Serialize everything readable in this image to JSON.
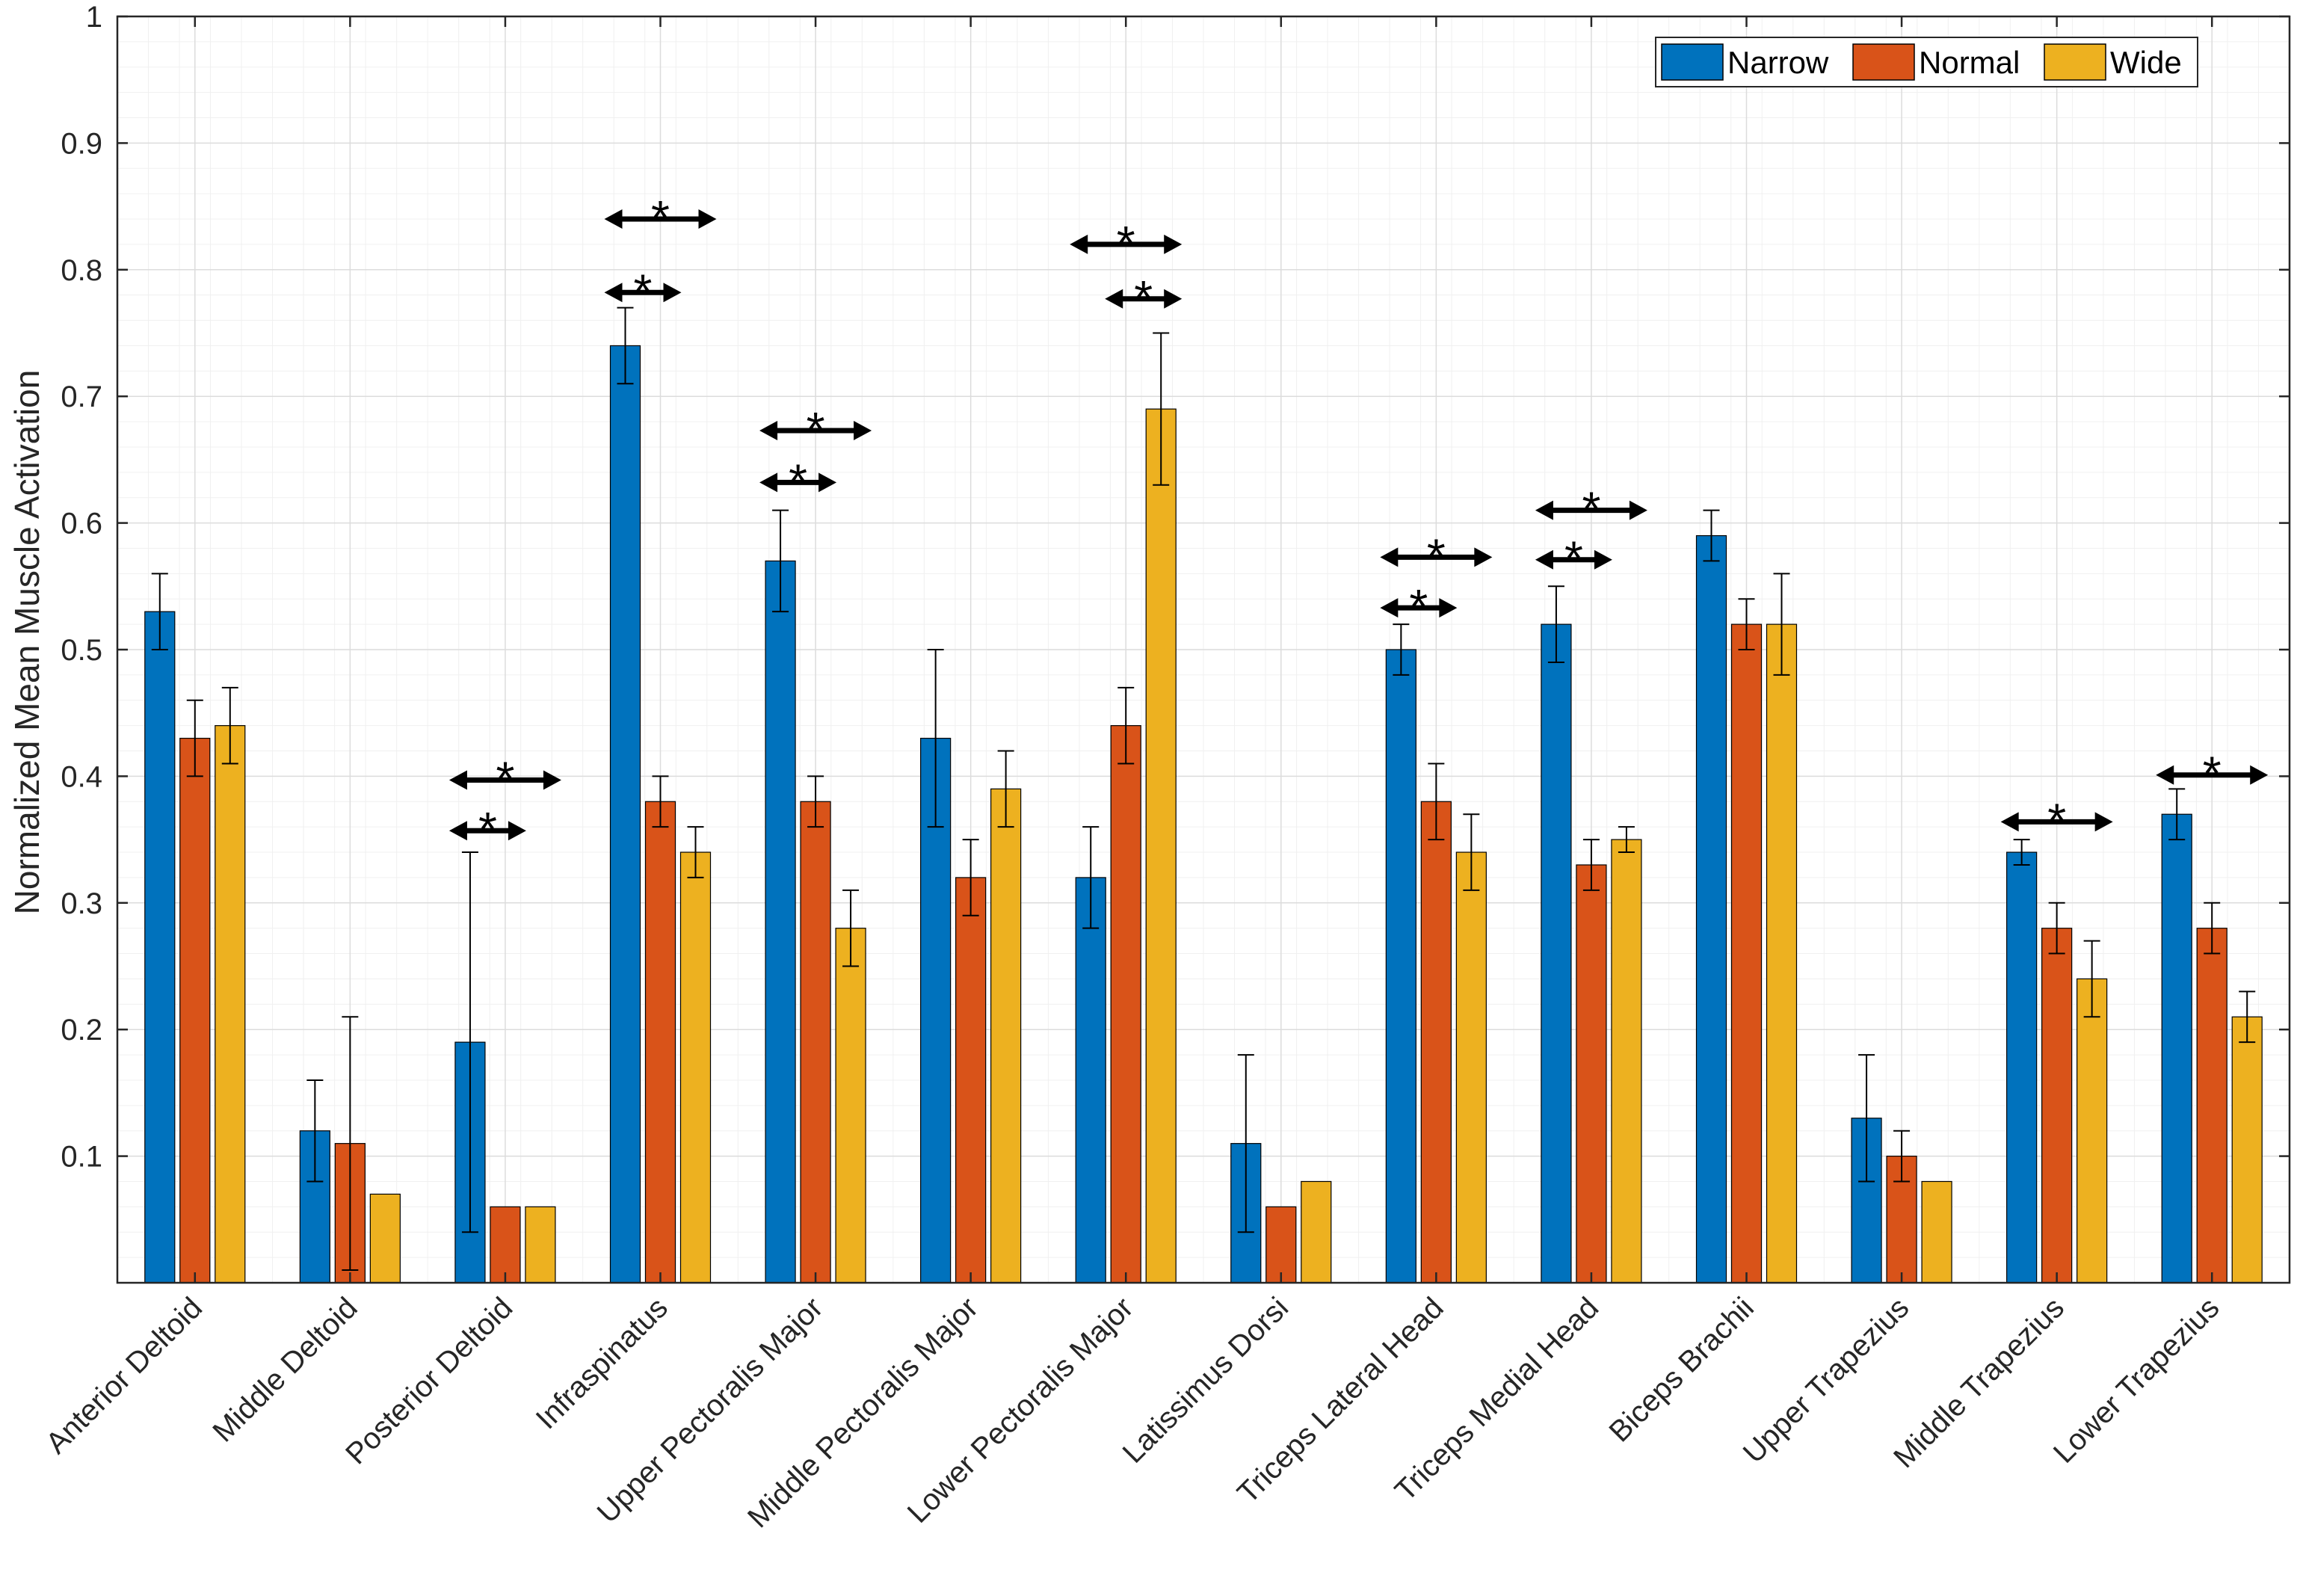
{
  "chart_data": {
    "type": "bar",
    "title": "",
    "xlabel": "",
    "ylabel": "Normalized Mean Muscle Activation",
    "ylim": [
      0,
      1
    ],
    "yticks": [
      0.1,
      0.2,
      0.3,
      0.4,
      0.5,
      0.6,
      0.7,
      0.8,
      0.9,
      1
    ],
    "ytick_labels": [
      "0.1",
      "0.2",
      "0.3",
      "0.4",
      "0.5",
      "0.6",
      "0.7",
      "0.8",
      "0.9",
      "1"
    ],
    "grid": true,
    "minor_grid": true,
    "legend_position": "top-right",
    "categories": [
      "Anterior Deltoid",
      "Middle Deltoid",
      "Posterior Deltoid",
      "Infraspinatus",
      "Upper Pectoralis Major",
      "Middle Pectoralis Major",
      "Lower Pectoralis Major",
      "Latissimus Dorsi",
      "Triceps Lateral Head",
      "Triceps Medial Head",
      "Biceps Brachii",
      "Upper Trapezius",
      "Middle Trapezius",
      "Lower Trapezius"
    ],
    "series": [
      {
        "name": "Narrow",
        "color": "#0072BD",
        "values": [
          0.53,
          0.12,
          0.19,
          0.74,
          0.57,
          0.43,
          0.32,
          0.11,
          0.5,
          0.52,
          0.59,
          0.13,
          0.34,
          0.37
        ],
        "error": [
          0.03,
          0.04,
          0.15,
          0.03,
          0.04,
          0.07,
          0.04,
          0.07,
          0.02,
          0.03,
          0.02,
          0.05,
          0.01,
          0.02
        ]
      },
      {
        "name": "Normal",
        "color": "#D95319",
        "values": [
          0.43,
          0.11,
          0.06,
          0.38,
          0.38,
          0.32,
          0.44,
          0.06,
          0.38,
          0.33,
          0.52,
          0.1,
          0.28,
          0.28
        ],
        "error": [
          0.03,
          0.1,
          0.0,
          0.02,
          0.02,
          0.03,
          0.03,
          0.0,
          0.03,
          0.02,
          0.02,
          0.02,
          0.02,
          0.02
        ]
      },
      {
        "name": "Wide",
        "color": "#EDB120",
        "values": [
          0.44,
          0.07,
          0.06,
          0.34,
          0.28,
          0.39,
          0.69,
          0.08,
          0.34,
          0.35,
          0.52,
          0.08,
          0.24,
          0.21
        ],
        "error": [
          0.03,
          0.0,
          0.0,
          0.02,
          0.03,
          0.03,
          0.06,
          0.0,
          0.03,
          0.01,
          0.04,
          0.0,
          0.03,
          0.02
        ]
      }
    ],
    "significance": [
      {
        "category": 2,
        "from": 1,
        "to": 2,
        "y": 0.357,
        "label": "*"
      },
      {
        "category": 2,
        "from": 1,
        "to": 3,
        "y": 0.397,
        "label": "*"
      },
      {
        "category": 3,
        "from": 1,
        "to": 2,
        "y": 0.782,
        "label": "*"
      },
      {
        "category": 3,
        "from": 1,
        "to": 3,
        "y": 0.84,
        "label": "*"
      },
      {
        "category": 4,
        "from": 1,
        "to": 2,
        "y": 0.632,
        "label": "*"
      },
      {
        "category": 4,
        "from": 1,
        "to": 3,
        "y": 0.673,
        "label": "*"
      },
      {
        "category": 6,
        "from": 2,
        "to": 3,
        "y": 0.777,
        "label": "*"
      },
      {
        "category": 6,
        "from": 1,
        "to": 3,
        "y": 0.82,
        "label": "*"
      },
      {
        "category": 8,
        "from": 1,
        "to": 2,
        "y": 0.533,
        "label": "*"
      },
      {
        "category": 8,
        "from": 1,
        "to": 3,
        "y": 0.573,
        "label": "*"
      },
      {
        "category": 9,
        "from": 1,
        "to": 2,
        "y": 0.571,
        "label": "*"
      },
      {
        "category": 9,
        "from": 1,
        "to": 3,
        "y": 0.61,
        "label": "*"
      },
      {
        "category": 12,
        "from": 1,
        "to": 3,
        "y": 0.364,
        "label": "*"
      },
      {
        "category": 13,
        "from": 1,
        "to": 3,
        "y": 0.401,
        "label": "*"
      }
    ]
  }
}
